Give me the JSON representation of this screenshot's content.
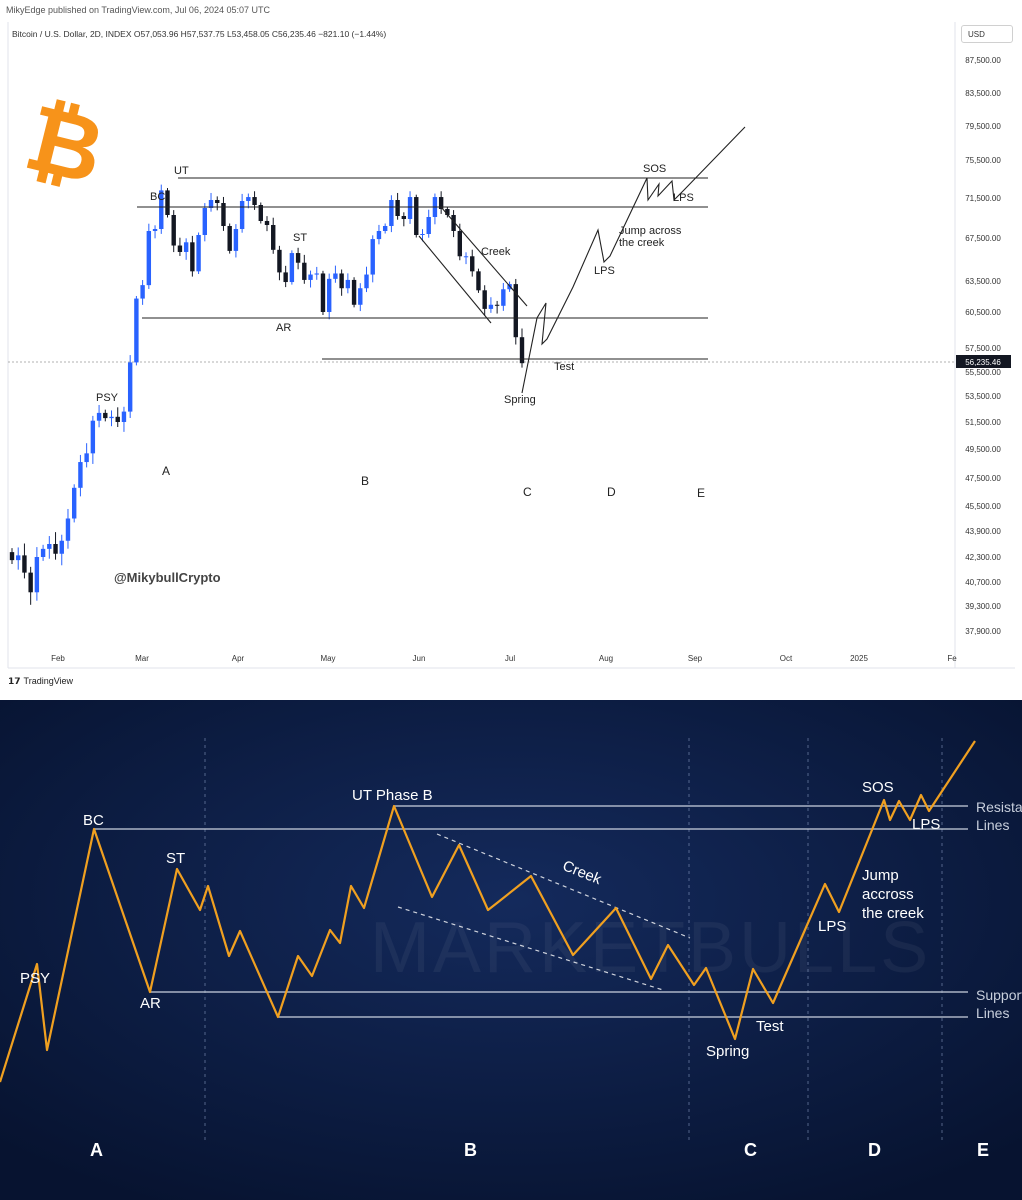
{
  "header": {
    "published": "MikyEdge published on TradingView.com, Jul 06, 2024 05:07 UTC",
    "symbol": "Bitcoin / U.S. Dollar, 2D, INDEX",
    "ohlc": "O57,053.96 H57,537.75 L53,458.05 C56,235.46 −821.10 (−1.44%)",
    "currency": "USD"
  },
  "footer": {
    "tv_brand": "TradingView"
  },
  "watermark": "@MikybullCrypto",
  "colors": {
    "up": "#2962ff",
    "down": "#131722",
    "accent_orange": "#f7931a",
    "wave": "#f0a020",
    "bottom_bg": "#0a1838"
  },
  "chart_data": [
    {
      "type": "candlestick",
      "title": "Bitcoin / U.S. Dollar, 2D, INDEX",
      "x_ticks": [
        "Feb",
        "Mar",
        "Apr",
        "May",
        "Jun",
        "Jul",
        "Aug",
        "Sep",
        "Oct",
        "2025",
        "Fe"
      ],
      "y_ticks": [
        "87,500.00",
        "83,500.00",
        "79,500.00",
        "75,500.00",
        "71,500.00",
        "67,500.00",
        "63,500.00",
        "60,500.00",
        "57,500.00",
        "55,500.00",
        "53,500.00",
        "51,500.00",
        "49,500.00",
        "47,500.00",
        "45,500.00",
        "43,900.00",
        "42,300.00",
        "40,700.00",
        "39,300.00",
        "37,900.00"
      ],
      "last_price": "56,235.46",
      "close": [
        42100,
        42400,
        41300,
        40100,
        42300,
        42800,
        43100,
        42500,
        43300,
        44700,
        46800,
        48600,
        49200,
        51600,
        52200,
        51800,
        51900,
        51500,
        52300,
        56300,
        61800,
        63100,
        68200,
        68400,
        72300,
        69800,
        66800,
        66200,
        67100,
        64400,
        67800,
        70500,
        71300,
        71000,
        68700,
        66300,
        68400,
        71200,
        71600,
        70800,
        69200,
        68800,
        66400,
        64300,
        63400,
        66100,
        65200,
        63600,
        64100,
        64200,
        60500,
        63700,
        64200,
        62800,
        63600,
        61200,
        62800,
        64100,
        67400,
        68200,
        68700,
        71300,
        69700,
        69400,
        71600,
        67800,
        67900,
        69600,
        71600,
        70400,
        69800,
        68200,
        65800,
        65800,
        64400,
        62600,
        60800,
        61200,
        61100,
        62700,
        63200,
        58400,
        56235
      ],
      "labels": [
        "UT",
        "BC",
        "ST",
        "AR",
        "PSY",
        "SOS",
        "LPS",
        "LPS",
        "Creek",
        "Jump across the creek",
        "Test",
        "Spring",
        "A",
        "B",
        "C",
        "D",
        "E"
      ]
    },
    {
      "type": "line",
      "title": "",
      "labels": [
        "PSY",
        "BC",
        "ST",
        "AR",
        "UT Phase B",
        "Creek",
        "Spring",
        "Test",
        "LPS",
        "SOS",
        "LPS",
        "Jump accross the creek",
        "Resistance Lines",
        "Support Lines"
      ],
      "phases": [
        "A",
        "B",
        "C",
        "D",
        "E"
      ],
      "watermark": "MARKETBULLS"
    }
  ]
}
